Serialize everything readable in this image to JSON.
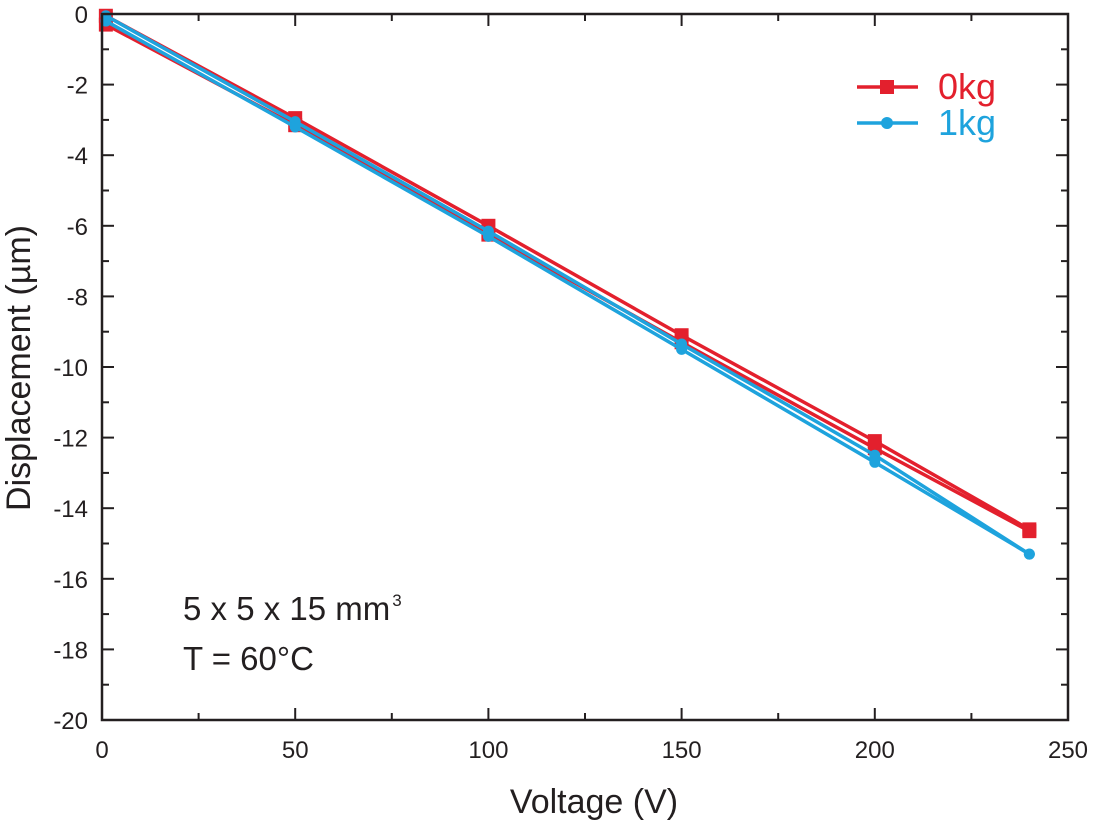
{
  "chart_data": {
    "type": "line",
    "xlabel": "Voltage (V)",
    "ylabel": "Displacement (µm)",
    "xlim": [
      0,
      250
    ],
    "ylim": [
      -20,
      0
    ],
    "xticks": [
      0,
      50,
      100,
      150,
      200,
      250
    ],
    "yticks": [
      0,
      -2,
      -4,
      -6,
      -8,
      -10,
      -12,
      -14,
      -16,
      -18,
      -20
    ],
    "grid": false,
    "legend_position": "top-right",
    "annotation": {
      "line1": "5 x 5 x 15 mm",
      "line1_sup": "3",
      "line2": "T = 60°C"
    },
    "series": [
      {
        "name": "0kg",
        "color": "#e3202d",
        "marker": "square",
        "traces": [
          {
            "x": [
              1,
              50,
              100,
              150,
              200,
              240
            ],
            "y": [
              -0.05,
              -2.95,
              -6.0,
              -9.1,
              -12.1,
              -14.6
            ]
          },
          {
            "x": [
              1,
              50,
              100,
              150,
              200,
              240
            ],
            "y": [
              -0.3,
              -3.15,
              -6.25,
              -9.3,
              -12.3,
              -14.65
            ]
          }
        ]
      },
      {
        "name": "1kg",
        "color": "#1ea3dd",
        "marker": "circle",
        "traces": [
          {
            "x": [
              1,
              50,
              100,
              150,
              200,
              240
            ],
            "y": [
              -0.05,
              -3.05,
              -6.15,
              -9.35,
              -12.5,
              -15.3
            ]
          },
          {
            "x": [
              1,
              50,
              100,
              150,
              200,
              240
            ],
            "y": [
              -0.2,
              -3.2,
              -6.3,
              -9.5,
              -12.7,
              -15.3
            ]
          }
        ]
      }
    ]
  }
}
